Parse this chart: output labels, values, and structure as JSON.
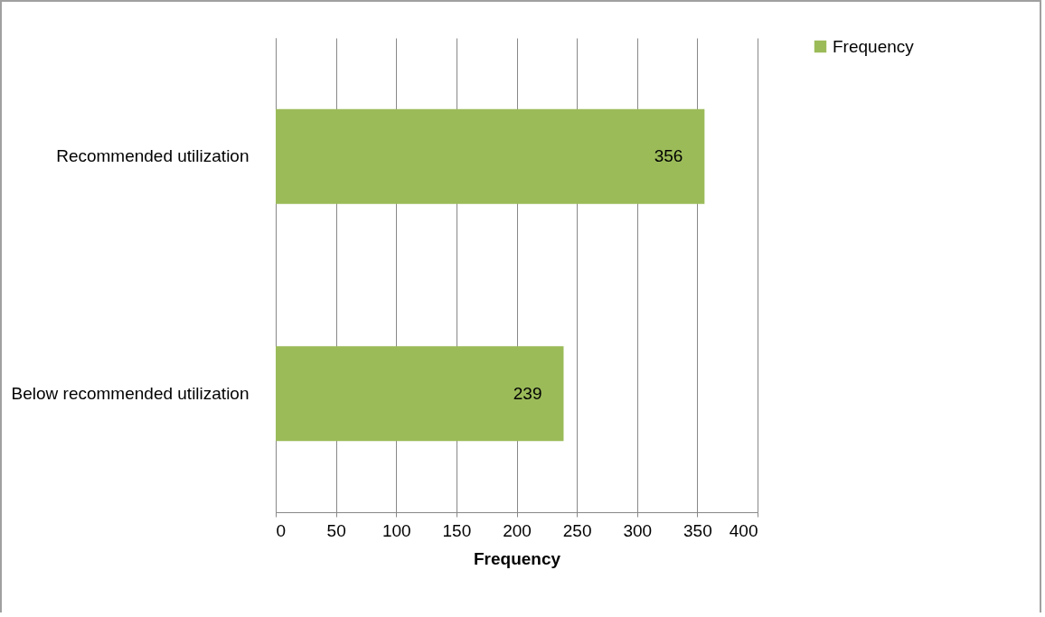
{
  "chart_data": {
    "type": "bar",
    "orientation": "horizontal",
    "categories": [
      "Recommended utilization",
      "Below recommended utilization"
    ],
    "series": [
      {
        "name": "Frequency",
        "color": "#9bbb59",
        "values": [
          356,
          239
        ]
      }
    ],
    "xlabel": "Frequency",
    "xlim": [
      0,
      400
    ],
    "xticks": [
      0,
      50,
      100,
      150,
      200,
      250,
      300,
      350,
      400
    ],
    "grid": "x",
    "legend": "right",
    "data_labels": true
  }
}
